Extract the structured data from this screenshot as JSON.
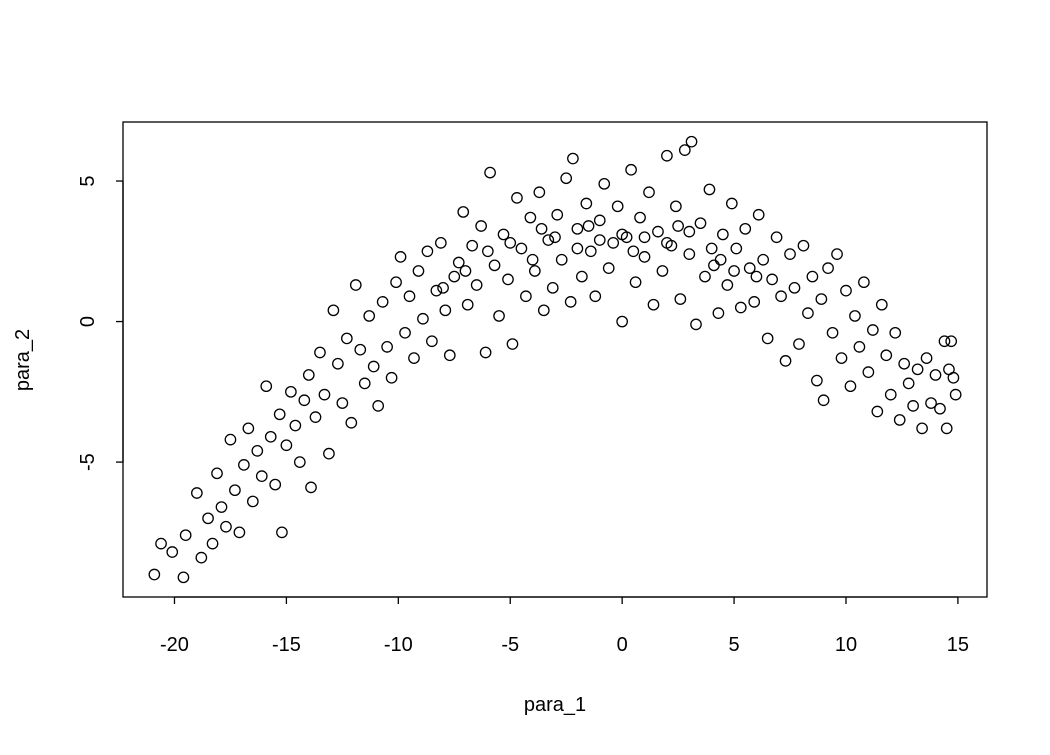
{
  "chart_data": {
    "type": "scatter",
    "title": "",
    "xlabel": "para_1",
    "ylabel": "para_2",
    "xlim": [
      -22.3,
      16.3
    ],
    "ylim": [
      -9.8,
      7.1
    ],
    "xticks": [
      -20,
      -15,
      -10,
      -5,
      0,
      5,
      10,
      15
    ],
    "yticks": [
      -5,
      0,
      5
    ],
    "grid": false,
    "marker": "open-circle",
    "color": "#000000",
    "points": [
      [
        -20.9,
        -9.0
      ],
      [
        -20.6,
        -7.9
      ],
      [
        -19.6,
        -9.1
      ],
      [
        -19.5,
        -7.6
      ],
      [
        -20.1,
        -8.2
      ],
      [
        -19.0,
        -6.1
      ],
      [
        -18.8,
        -8.4
      ],
      [
        -18.5,
        -7.0
      ],
      [
        -18.3,
        -7.9
      ],
      [
        -18.1,
        -5.4
      ],
      [
        -17.9,
        -6.6
      ],
      [
        -17.7,
        -7.3
      ],
      [
        -17.5,
        -4.2
      ],
      [
        -17.3,
        -6.0
      ],
      [
        -17.1,
        -7.5
      ],
      [
        -16.9,
        -5.1
      ],
      [
        -16.7,
        -3.8
      ],
      [
        -16.5,
        -6.4
      ],
      [
        -16.3,
        -4.6
      ],
      [
        -16.1,
        -5.5
      ],
      [
        -15.9,
        -2.3
      ],
      [
        -15.7,
        -4.1
      ],
      [
        -15.5,
        -5.8
      ],
      [
        -15.3,
        -3.3
      ],
      [
        -15.2,
        -7.5
      ],
      [
        -15.0,
        -4.4
      ],
      [
        -14.8,
        -2.5
      ],
      [
        -14.6,
        -3.7
      ],
      [
        -14.4,
        -5.0
      ],
      [
        -14.2,
        -2.8
      ],
      [
        -14.0,
        -1.9
      ],
      [
        -13.9,
        -5.9
      ],
      [
        -13.7,
        -3.4
      ],
      [
        -13.5,
        -1.1
      ],
      [
        -13.3,
        -2.6
      ],
      [
        -13.1,
        -4.7
      ],
      [
        -12.9,
        0.4
      ],
      [
        -12.7,
        -1.5
      ],
      [
        -12.5,
        -2.9
      ],
      [
        -12.3,
        -0.6
      ],
      [
        -12.1,
        -3.6
      ],
      [
        -11.9,
        1.3
      ],
      [
        -11.7,
        -1.0
      ],
      [
        -11.5,
        -2.2
      ],
      [
        -11.3,
        0.2
      ],
      [
        -11.1,
        -1.6
      ],
      [
        -10.9,
        -3.0
      ],
      [
        -10.7,
        0.7
      ],
      [
        -10.5,
        -0.9
      ],
      [
        -10.3,
        -2.0
      ],
      [
        -10.1,
        1.4
      ],
      [
        -9.9,
        2.3
      ],
      [
        -9.7,
        -0.4
      ],
      [
        -9.5,
        0.9
      ],
      [
        -9.3,
        -1.3
      ],
      [
        -9.1,
        1.8
      ],
      [
        -8.9,
        0.1
      ],
      [
        -8.7,
        2.5
      ],
      [
        -8.5,
        -0.7
      ],
      [
        -8.3,
        1.1
      ],
      [
        -8.1,
        2.8
      ],
      [
        -7.9,
        0.4
      ],
      [
        -7.7,
        -1.2
      ],
      [
        -7.5,
        1.6
      ],
      [
        -7.3,
        2.1
      ],
      [
        -7.1,
        3.9
      ],
      [
        -6.9,
        0.6
      ],
      [
        -6.7,
        2.7
      ],
      [
        -6.5,
        1.3
      ],
      [
        -6.3,
        3.4
      ],
      [
        -6.1,
        -1.1
      ],
      [
        -5.9,
        5.3
      ],
      [
        -5.7,
        2.0
      ],
      [
        -5.5,
        0.2
      ],
      [
        -5.3,
        3.1
      ],
      [
        -5.1,
        1.5
      ],
      [
        -4.9,
        -0.8
      ],
      [
        -4.7,
        4.4
      ],
      [
        -4.5,
        2.6
      ],
      [
        -4.3,
        0.9
      ],
      [
        -4.1,
        3.7
      ],
      [
        -3.9,
        1.8
      ],
      [
        -3.7,
        4.6
      ],
      [
        -3.5,
        0.4
      ],
      [
        -3.3,
        2.9
      ],
      [
        -3.1,
        1.2
      ],
      [
        -2.9,
        3.8
      ],
      [
        -2.7,
        2.2
      ],
      [
        -2.5,
        5.1
      ],
      [
        -2.3,
        0.7
      ],
      [
        -2.2,
        5.8
      ],
      [
        -2.0,
        3.3
      ],
      [
        -1.8,
        1.6
      ],
      [
        -1.6,
        4.2
      ],
      [
        -1.4,
        2.5
      ],
      [
        -1.2,
        0.9
      ],
      [
        -1.0,
        3.6
      ],
      [
        -0.8,
        4.9
      ],
      [
        -0.6,
        1.9
      ],
      [
        -0.4,
        2.8
      ],
      [
        -0.2,
        4.1
      ],
      [
        0.0,
        0.0
      ],
      [
        0.2,
        3.0
      ],
      [
        0.4,
        5.4
      ],
      [
        0.6,
        1.4
      ],
      [
        0.8,
        3.7
      ],
      [
        1.0,
        2.3
      ],
      [
        1.2,
        4.6
      ],
      [
        1.4,
        0.6
      ],
      [
        1.6,
        3.2
      ],
      [
        1.8,
        1.8
      ],
      [
        2.0,
        5.9
      ],
      [
        2.2,
        2.7
      ],
      [
        2.4,
        4.1
      ],
      [
        2.6,
        0.8
      ],
      [
        2.8,
        6.1
      ],
      [
        3.0,
        2.4
      ],
      [
        3.1,
        6.4
      ],
      [
        3.3,
        -0.1
      ],
      [
        3.5,
        3.5
      ],
      [
        3.7,
        1.6
      ],
      [
        3.9,
        4.7
      ],
      [
        4.1,
        2.0
      ],
      [
        4.3,
        0.3
      ],
      [
        4.5,
        3.1
      ],
      [
        4.7,
        1.3
      ],
      [
        4.9,
        4.2
      ],
      [
        5.1,
        2.6
      ],
      [
        5.3,
        0.5
      ],
      [
        5.5,
        3.3
      ],
      [
        5.7,
        1.9
      ],
      [
        5.9,
        0.7
      ],
      [
        6.1,
        3.8
      ],
      [
        6.3,
        2.2
      ],
      [
        6.5,
        -0.6
      ],
      [
        6.7,
        1.5
      ],
      [
        6.9,
        3.0
      ],
      [
        7.1,
        0.9
      ],
      [
        7.3,
        -1.4
      ],
      [
        7.5,
        2.4
      ],
      [
        7.7,
        1.2
      ],
      [
        7.9,
        -0.8
      ],
      [
        8.1,
        2.7
      ],
      [
        8.3,
        0.3
      ],
      [
        8.5,
        1.6
      ],
      [
        8.7,
        -2.1
      ],
      [
        8.9,
        0.8
      ],
      [
        9.0,
        -2.8
      ],
      [
        9.2,
        1.9
      ],
      [
        9.4,
        -0.4
      ],
      [
        9.6,
        2.4
      ],
      [
        9.8,
        -1.3
      ],
      [
        10.0,
        1.1
      ],
      [
        10.2,
        -2.3
      ],
      [
        10.4,
        0.2
      ],
      [
        10.6,
        -0.9
      ],
      [
        10.8,
        1.4
      ],
      [
        11.0,
        -1.8
      ],
      [
        11.2,
        -0.3
      ],
      [
        11.4,
        -3.2
      ],
      [
        11.6,
        0.6
      ],
      [
        11.8,
        -1.2
      ],
      [
        12.0,
        -2.6
      ],
      [
        12.2,
        -0.4
      ],
      [
        12.4,
        -3.5
      ],
      [
        12.6,
        -1.5
      ],
      [
        12.8,
        -2.2
      ],
      [
        13.0,
        -3.0
      ],
      [
        13.2,
        -1.7
      ],
      [
        13.4,
        -3.8
      ],
      [
        13.6,
        -1.3
      ],
      [
        13.8,
        -2.9
      ],
      [
        14.0,
        -1.9
      ],
      [
        14.2,
        -3.1
      ],
      [
        14.4,
        -0.7
      ],
      [
        14.5,
        -3.8
      ],
      [
        14.6,
        -1.7
      ],
      [
        14.7,
        -0.7
      ],
      [
        14.9,
        -2.6
      ],
      [
        14.8,
        -2.0
      ],
      [
        -6.0,
        2.5
      ],
      [
        -5.0,
        2.8
      ],
      [
        -4.0,
        2.2
      ],
      [
        -3.0,
        3.0
      ],
      [
        -2.0,
        2.6
      ],
      [
        -1.0,
        2.9
      ],
      [
        0.0,
        3.1
      ],
      [
        1.0,
        3.0
      ],
      [
        2.0,
        2.8
      ],
      [
        3.0,
        3.2
      ],
      [
        4.0,
        2.6
      ],
      [
        5.0,
        1.8
      ],
      [
        -7.0,
        1.8
      ],
      [
        -3.6,
        3.3
      ],
      [
        -1.5,
        3.4
      ],
      [
        0.5,
        2.5
      ],
      [
        2.5,
        3.4
      ],
      [
        4.4,
        2.2
      ],
      [
        6.0,
        1.6
      ],
      [
        -8.0,
        1.2
      ]
    ]
  }
}
